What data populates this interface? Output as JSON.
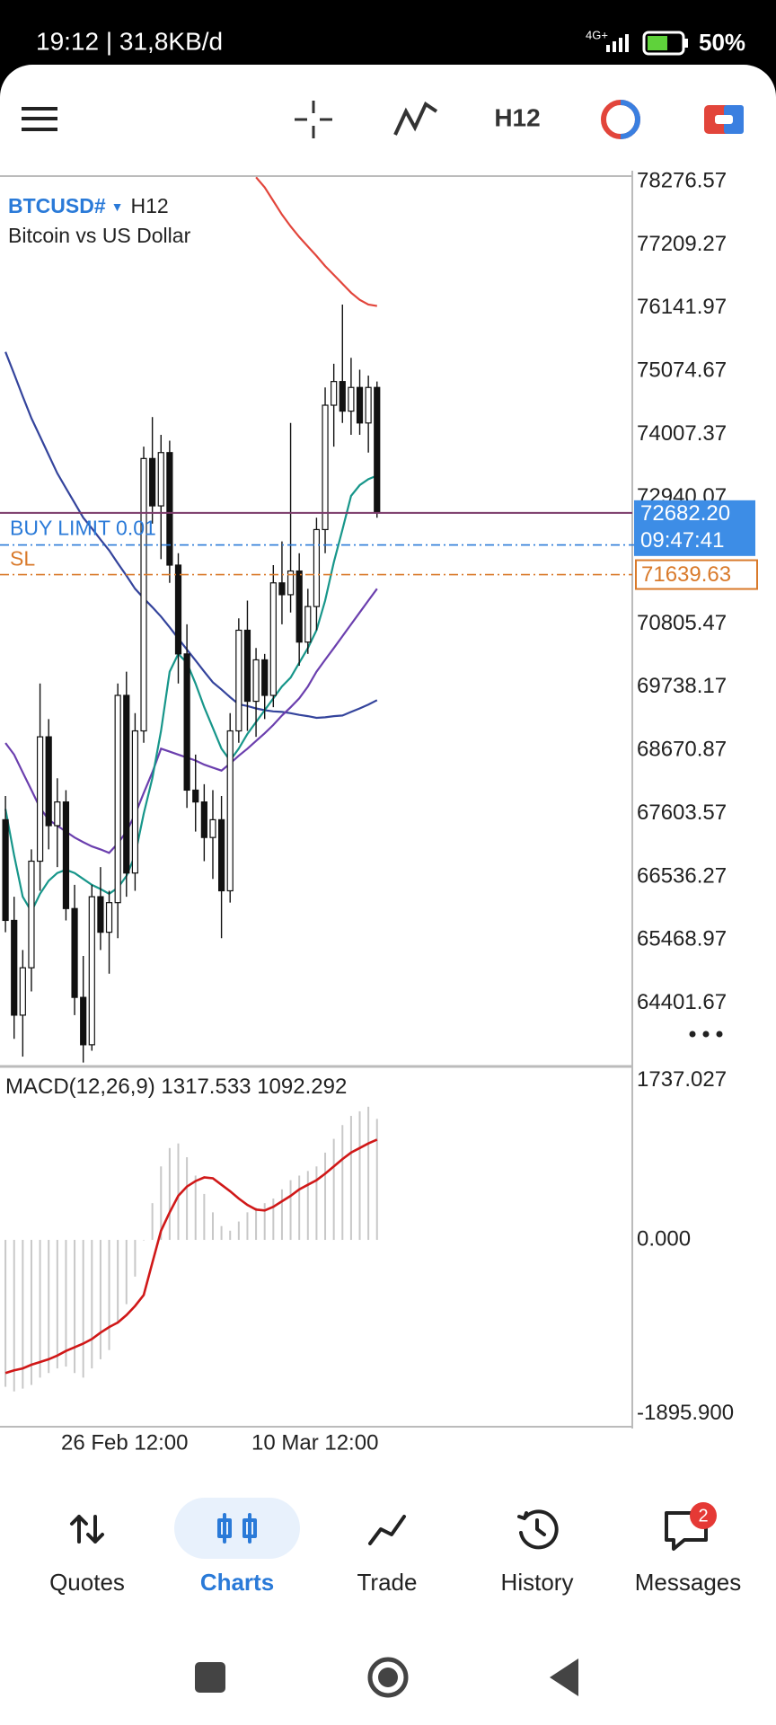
{
  "status_bar": {
    "time_speed": "19:12 | 31,8KB/d",
    "network": "4G+",
    "battery": "50%"
  },
  "toolbar": {
    "timeframe": "H12"
  },
  "chart": {
    "symbol": "BTCUSD#",
    "timeframe": "H12",
    "description": "Bitcoin vs US Dollar",
    "price_axis": {
      "ylim": [
        63349,
        78369
      ],
      "ticks": [
        78276.57,
        77209.27,
        76141.97,
        75074.67,
        74007.37,
        72940.07,
        70805.47,
        69738.17,
        68670.87,
        67603.57,
        66536.27,
        65468.97,
        64401.67
      ]
    },
    "candles": {
      "open": [
        67500,
        65800,
        64200,
        65000,
        66800,
        68900,
        67400,
        67800,
        66000,
        64500,
        63700,
        66200,
        65600,
        66100,
        69600,
        66600,
        69000,
        73600,
        72800,
        73700,
        71800,
        70300,
        68000,
        67800,
        67200,
        67500,
        66300,
        69000,
        70700,
        69500,
        70200,
        69600,
        71500,
        71300,
        71700,
        70500,
        71100,
        72400,
        74500,
        74900,
        74400,
        74800,
        74200,
        74800
      ],
      "high": [
        67900,
        66200,
        65300,
        67000,
        69800,
        69200,
        68200,
        68000,
        66400,
        65200,
        66400,
        66700,
        66300,
        69800,
        70000,
        69300,
        73800,
        74300,
        74000,
        73900,
        72000,
        70800,
        68600,
        68100,
        68000,
        67900,
        69300,
        70900,
        71200,
        70400,
        70300,
        71800,
        72200,
        74200,
        72000,
        71400,
        72600,
        74800,
        75200,
        76200,
        75300,
        75100,
        75000,
        74900
      ],
      "low": [
        65600,
        63800,
        63500,
        64600,
        66300,
        67000,
        66700,
        65800,
        64200,
        63400,
        63600,
        65300,
        64900,
        65500,
        66200,
        66300,
        68800,
        72500,
        71900,
        71500,
        69800,
        67700,
        67300,
        66800,
        66500,
        65500,
        66100,
        68800,
        69000,
        68900,
        69200,
        69400,
        70800,
        71000,
        70100,
        70300,
        70700,
        72000,
        73800,
        74200,
        74000,
        74000,
        73700,
        72600
      ],
      "close": [
        65800,
        64200,
        65000,
        66800,
        68900,
        67400,
        67800,
        66000,
        64500,
        63700,
        66200,
        65600,
        66100,
        69600,
        66600,
        69000,
        73600,
        72800,
        73700,
        71800,
        70300,
        68000,
        67800,
        67200,
        67500,
        66300,
        69000,
        70700,
        69500,
        70200,
        69600,
        71500,
        71300,
        71700,
        70500,
        71100,
        72400,
        74500,
        74900,
        74400,
        74800,
        74200,
        74800,
        72682.2
      ]
    },
    "moving_averages": [
      {
        "color": "#e2453b",
        "values": [
          null,
          null,
          null,
          null,
          null,
          null,
          null,
          null,
          null,
          null,
          null,
          null,
          null,
          null,
          null,
          null,
          null,
          null,
          null,
          null,
          null,
          null,
          null,
          null,
          null,
          null,
          null,
          null,
          null,
          78350,
          78180,
          77950,
          77720,
          77520,
          77340,
          77180,
          77020,
          76850,
          76700,
          76550,
          76400,
          76280,
          76200,
          76175
        ]
      },
      {
        "color": "#34449c",
        "values": [
          75400,
          75030,
          74650,
          74280,
          73970,
          73660,
          73350,
          73100,
          72850,
          72600,
          72420,
          72230,
          72050,
          71830,
          71620,
          71400,
          71240,
          71090,
          70930,
          70750,
          70560,
          70375,
          70190,
          70000,
          69820,
          69700,
          69570,
          69450,
          69420,
          69380,
          69350,
          69330,
          69320,
          69300,
          69270,
          69250,
          69220,
          69230,
          69250,
          69260,
          69320,
          69380,
          69445,
          69520
        ]
      },
      {
        "color": "#6b3fae",
        "values": [
          68795,
          68600,
          68300,
          68000,
          67700,
          67500,
          67400,
          67300,
          67200,
          67120,
          67050,
          67000,
          66940,
          67100,
          67300,
          67590,
          67950,
          68300,
          68700,
          68650,
          68600,
          68550,
          68500,
          68430,
          68380,
          68330,
          68450,
          68580,
          68700,
          68830,
          68960,
          69100,
          69260,
          69400,
          69550,
          69750,
          70000,
          70200,
          70400,
          70600,
          70800,
          71000,
          71200,
          71400
        ]
      },
      {
        "color": "#17968a",
        "values": [
          67679,
          66900,
          66200,
          65950,
          66250,
          66470,
          66600,
          66655,
          66600,
          66500,
          66400,
          66330,
          66250,
          66350,
          66550,
          66900,
          67600,
          68200,
          69000,
          70000,
          70300,
          70150,
          69800,
          69400,
          69050,
          68700,
          68500,
          68700,
          68950,
          69150,
          69350,
          69550,
          69750,
          69900,
          70150,
          70400,
          70700,
          71200,
          71850,
          72400,
          72970,
          73150,
          73250,
          73310
        ]
      }
    ],
    "current_price": {
      "value": 72682.2,
      "label": "72682.20",
      "countdown": "09:47:41"
    },
    "buy_limit": {
      "label": "BUY LIMIT 0.01",
      "price": 72140
    },
    "stop_loss": {
      "label": "SL",
      "value": 71639.63
    },
    "macd": {
      "name": "MACD(12,26,9)",
      "main_value": 1317.533,
      "signal_value": 1092.292,
      "ylim": [
        -2025,
        1869
      ],
      "ticks": [
        1737.027,
        {
          "value": 0,
          "label": "0.000"
        },
        {
          "value": -1895.9,
          "label": "-1895.900"
        }
      ],
      "histogram": [
        -1600,
        -1650,
        -1620,
        -1580,
        -1500,
        -1450,
        -1400,
        -1380,
        -1450,
        -1500,
        -1400,
        -1300,
        -1200,
        -900,
        -700,
        -400,
        0,
        400,
        800,
        1000,
        1050,
        900,
        700,
        500,
        300,
        150,
        100,
        200,
        300,
        350,
        400,
        450,
        550,
        650,
        700,
        750,
        800,
        950,
        1100,
        1250,
        1350,
        1400,
        1450,
        1317.533
      ],
      "signal": [
        -1450,
        -1420,
        -1400,
        -1360,
        -1330,
        -1300,
        -1260,
        -1210,
        -1170,
        -1130,
        -1080,
        -1010,
        -950,
        -900,
        -820,
        -720,
        -600,
        -250,
        100,
        300,
        480,
        580,
        640,
        680,
        670,
        600,
        530,
        450,
        380,
        330,
        320,
        360,
        420,
        480,
        550,
        600,
        650,
        720,
        800,
        880,
        950,
        1000,
        1050,
        1092.292
      ]
    },
    "time_labels": [
      "26 Feb 12:00",
      "10 Mar 12:00"
    ]
  },
  "nav": {
    "tabs": [
      "Quotes",
      "Charts",
      "Trade",
      "History",
      "Messages"
    ],
    "active": 1,
    "badge": 2
  }
}
